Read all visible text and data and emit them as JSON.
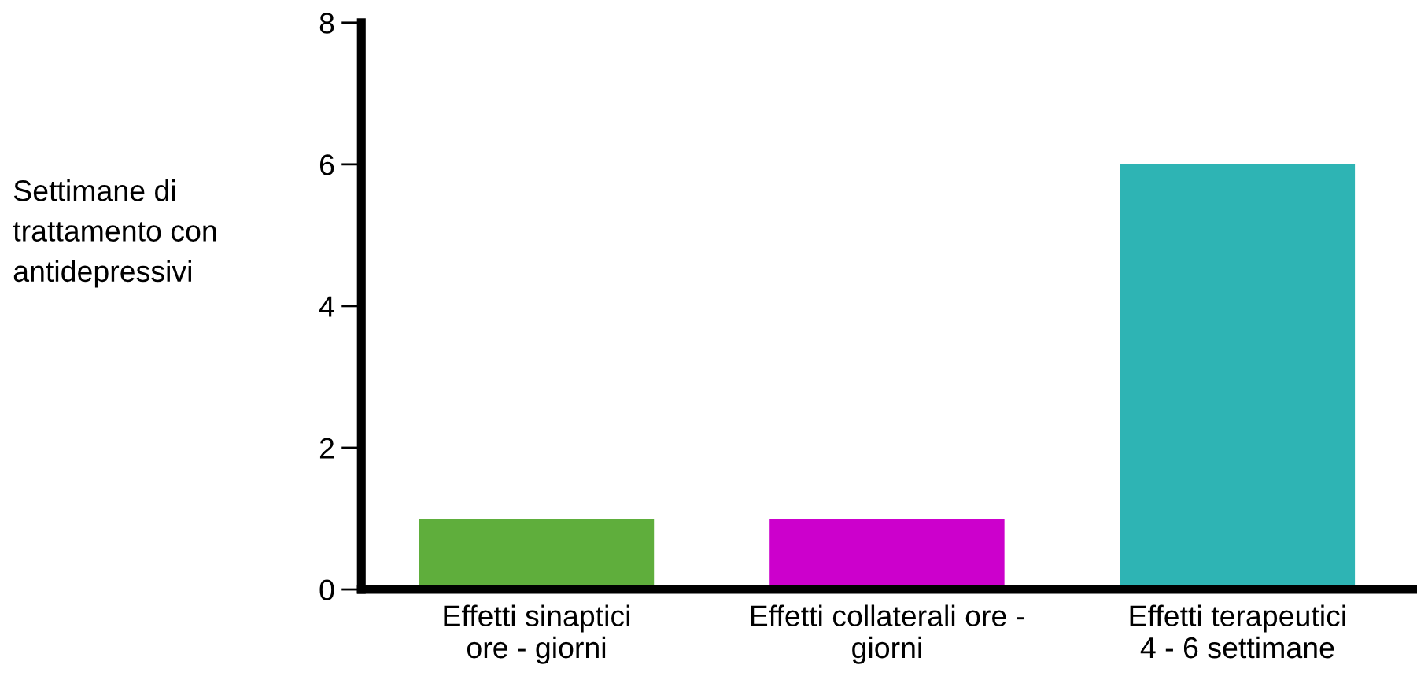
{
  "chart_data": {
    "type": "bar",
    "categories": [
      "Effetti sinaptici\nore - giorni",
      "Effetti collaterali ore -\ngiorni",
      "Effetti terapeutici\n4 - 6 settimane"
    ],
    "values": [
      1,
      1,
      6
    ],
    "colors": [
      "#5fae3c",
      "#cc00cc",
      "#2eb4b4"
    ],
    "ylabel": "Settimane di\ntrattamento con\nantidepressivi",
    "ylim": [
      0,
      8
    ],
    "yticks": [
      0,
      2,
      4,
      6,
      8
    ],
    "grid": false,
    "legend": false
  }
}
